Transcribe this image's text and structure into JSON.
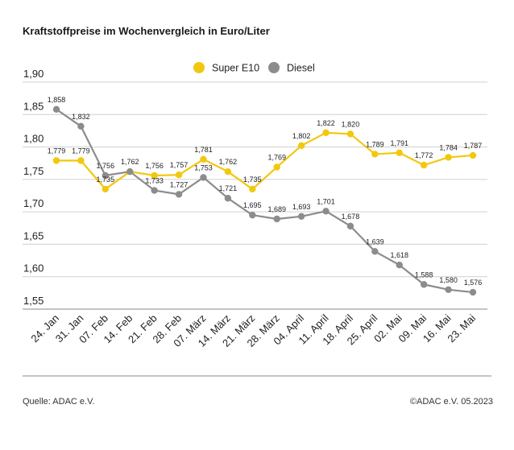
{
  "title": "Kraftstoffpreise im Wochenvergleich in Euro/Liter",
  "footer": {
    "source": "Quelle: ADAC e.V.",
    "copyright": "©ADAC e.V. 05.2023"
  },
  "colors": {
    "super_e10": "#f2c80f",
    "diesel": "#8c8c8c",
    "grid": "#d0d0d0",
    "axis": "#888888"
  },
  "chart_data": {
    "type": "line",
    "title": "Kraftstoffpreise im Wochenvergleich in Euro/Liter",
    "xlabel": "",
    "ylabel": "",
    "ylim": [
      1.55,
      1.9
    ],
    "yticks": [
      1.55,
      1.6,
      1.65,
      1.7,
      1.75,
      1.8,
      1.85,
      1.9
    ],
    "ytick_labels": [
      "1,55",
      "1,60",
      "1,65",
      "1,70",
      "1,75",
      "1,80",
      "1,85",
      "1,90"
    ],
    "grid": true,
    "legend_position": "top-center",
    "categories": [
      "24. Jan",
      "31. Jan",
      "07. Feb",
      "14. Feb",
      "21. Feb",
      "28. Feb",
      "07. März",
      "14. März",
      "21. März",
      "28. März",
      "04. April",
      "11. April",
      "18. April",
      "25. April",
      "02. Mai",
      "09. Mai",
      "16. Mai",
      "23. Mai"
    ],
    "series": [
      {
        "name": "Super E10",
        "color": "#f2c80f",
        "values": [
          1.779,
          1.779,
          1.735,
          1.762,
          1.756,
          1.757,
          1.781,
          1.762,
          1.735,
          1.769,
          1.802,
          1.822,
          1.82,
          1.789,
          1.791,
          1.772,
          1.784,
          1.787
        ],
        "labels": [
          "1,779",
          "1,779",
          "1,735",
          "1,762",
          "1,756",
          "1,757",
          "1,781",
          "1,762",
          "1,735",
          "1,769",
          "1,802",
          "1,822",
          "1,820",
          "1,789",
          "1,791",
          "1,772",
          "1,784",
          "1,787"
        ]
      },
      {
        "name": "Diesel",
        "color": "#8c8c8c",
        "values": [
          1.858,
          1.832,
          1.756,
          1.762,
          1.733,
          1.727,
          1.753,
          1.721,
          1.695,
          1.689,
          1.693,
          1.701,
          1.678,
          1.639,
          1.618,
          1.588,
          1.58,
          1.576
        ],
        "labels": [
          "1,858",
          "1,832",
          "1,756",
          "",
          "1,733",
          "1,727",
          "1,753",
          "1,721",
          "1,695",
          "1,689",
          "1,693",
          "1,701",
          "1,678",
          "1,639",
          "1,618",
          "1,588",
          "1,580",
          "1,576"
        ]
      }
    ]
  }
}
